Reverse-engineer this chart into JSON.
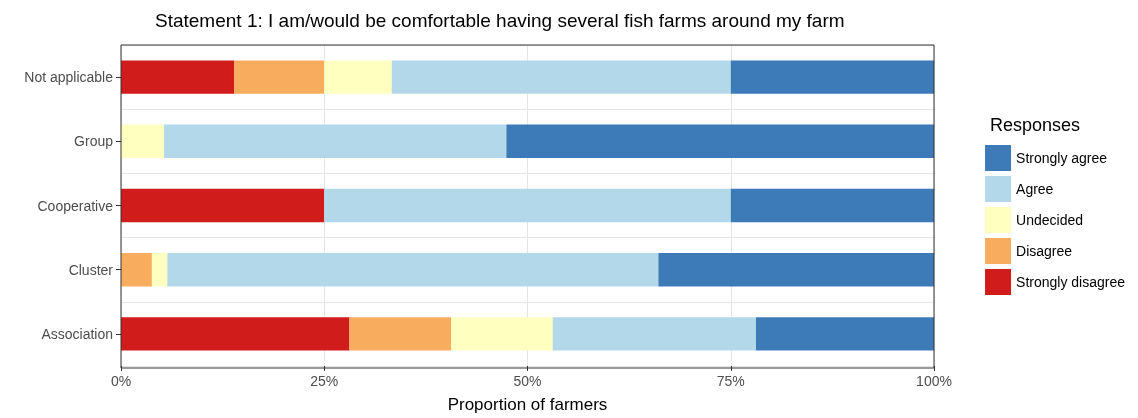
{
  "chart_data": {
    "type": "bar",
    "orientation": "horizontal",
    "stacked": true,
    "title": "Statement 1: I am/would be comfortable having several fish farms around my farm",
    "xlabel": "Proportion of farmers",
    "legend_title": "Responses",
    "legend": "right",
    "grid": true,
    "categories": [
      "Not applicable",
      "Group",
      "Cooperative",
      "Cluster",
      "Association"
    ],
    "xlim": [
      0,
      100
    ],
    "xticks": [
      {
        "value": 0,
        "label": "0%"
      },
      {
        "value": 25,
        "label": "25%"
      },
      {
        "value": 50,
        "label": "50%"
      },
      {
        "value": 75,
        "label": "75%"
      },
      {
        "value": 100,
        "label": "100%"
      }
    ],
    "series": [
      {
        "name": "Strongly disagree",
        "color": "#d01c1b",
        "values": [
          13.9,
          0,
          25,
          0,
          28.1
        ]
      },
      {
        "name": "Disagree",
        "color": "#f8ad5e",
        "values": [
          11.1,
          0,
          0,
          3.8,
          12.5
        ]
      },
      {
        "name": "Undecided",
        "color": "#ffffbf",
        "values": [
          8.3,
          5.3,
          0,
          1.9,
          12.5
        ]
      },
      {
        "name": "Agree",
        "color": "#b3d8e9",
        "values": [
          41.7,
          42.1,
          50,
          60.4,
          25
        ]
      },
      {
        "name": "Strongly agree",
        "color": "#3d7ab8",
        "values": [
          25,
          52.6,
          25,
          34,
          21.9
        ]
      }
    ]
  }
}
